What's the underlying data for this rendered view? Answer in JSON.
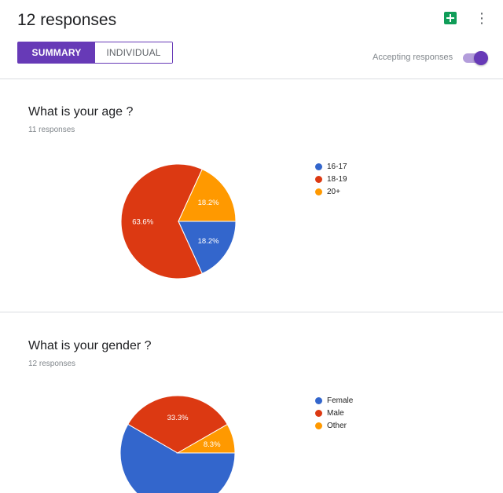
{
  "header": {
    "title": "12 responses",
    "tabs": {
      "summary": "SUMMARY",
      "individual": "INDIVIDUAL"
    },
    "accepting_label": "Accepting responses",
    "accepting_on": true,
    "accent": "#673ab7"
  },
  "questions": [
    {
      "title": "What is your age ?",
      "count": "11 responses"
    },
    {
      "title": "What is your gender ?",
      "count": "12 responses"
    }
  ],
  "chart_data": [
    {
      "type": "pie",
      "labels": [
        "16-17",
        "18-19",
        "20+"
      ],
      "values": [
        18.2,
        63.6,
        18.2
      ],
      "value_labels": [
        "18.2%",
        "63.6%",
        "18.2%"
      ],
      "colors": [
        "#3366cc",
        "#dc3912",
        "#ff9900"
      ],
      "legend": "right"
    },
    {
      "type": "pie",
      "labels": [
        "Female",
        "Male",
        "Other"
      ],
      "values": [
        58.3,
        33.3,
        8.3
      ],
      "value_labels": [
        "",
        "33.3%",
        "8.3%"
      ],
      "colors": [
        "#3366cc",
        "#dc3912",
        "#ff9900"
      ],
      "legend": "right"
    }
  ]
}
